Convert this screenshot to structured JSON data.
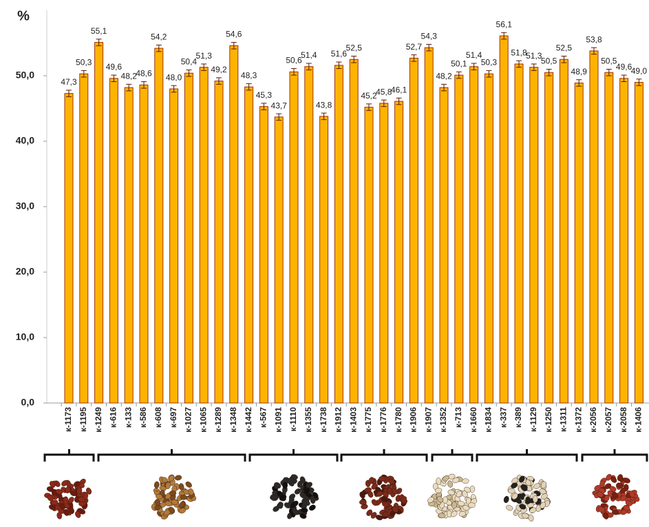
{
  "chart_data": {
    "type": "bar",
    "y_label": "%",
    "categories": [
      "к-1173",
      "к-1195",
      "к-1249",
      "к-616",
      "к-133",
      "к-586",
      "к-608",
      "к-697",
      "к-1027",
      "к-1065",
      "к-1289",
      "к-1348",
      "к-1442",
      "к-567",
      "к-1091",
      "к-1110",
      "к-1355",
      "к-1738",
      "к-1912",
      "к-1403",
      "к-1775",
      "к-1776",
      "к-1780",
      "к-1906",
      "к-1907",
      "к-1352",
      "к-713",
      "к-1660",
      "к-1834",
      "к-337",
      "к-389",
      "к-1129",
      "к-1250",
      "к-1311",
      "к-1372",
      "к-2056",
      "к-2057",
      "к-2058",
      "к-1406"
    ],
    "values": [
      47.3,
      50.3,
      55.1,
      49.6,
      48.2,
      48.6,
      54.2,
      48.0,
      50.4,
      51.3,
      49.2,
      54.6,
      48.3,
      45.3,
      43.7,
      50.6,
      51.4,
      43.8,
      51.6,
      52.5,
      45.2,
      45.8,
      46.1,
      52.7,
      54.3,
      48.2,
      50.1,
      51.4,
      50.3,
      56.1,
      51.8,
      51.3,
      50.5,
      52.5,
      48.9,
      53.8,
      50.5,
      49.6,
      49.0
    ],
    "value_labels": [
      "47,3",
      "50,3",
      "55,1",
      "49,6",
      "48,2",
      "48,6",
      "54,2",
      "48,0",
      "50,4",
      "51,3",
      "49,2",
      "54,6",
      "48,3",
      "45,3",
      "43,7",
      "50,6",
      "51,4",
      "43,8",
      "51,6",
      "52,5",
      "45,2",
      "45,8",
      "46,1",
      "52,7",
      "54,3",
      "48,2",
      "50,1",
      "51,4",
      "50,3",
      "56,1",
      "51,8",
      "51,3",
      "50,5",
      "52,5",
      "48,9",
      "53,8",
      "50,5",
      "49,6",
      "49,0"
    ],
    "errors": [
      0.5,
      0.5,
      0.5,
      0.5,
      0.5,
      0.5,
      0.5,
      0.5,
      0.5,
      0.5,
      0.5,
      0.5,
      0.5,
      0.5,
      0.5,
      0.5,
      0.5,
      0.5,
      0.5,
      0.5,
      0.5,
      0.5,
      0.5,
      0.5,
      0.5,
      0.5,
      0.5,
      0.5,
      0.5,
      0.5,
      0.5,
      0.5,
      0.5,
      0.5,
      0.5,
      0.5,
      0.5,
      0.5,
      0.5
    ],
    "color": "#ffb300",
    "edge_color": "#a0300a",
    "ylim": [
      0,
      60
    ],
    "yticks": [
      {
        "value": 0,
        "label": "0,0"
      },
      {
        "value": 10,
        "label": "10,0"
      },
      {
        "value": 20,
        "label": "20,0"
      },
      {
        "value": 30,
        "label": "30,0"
      },
      {
        "value": 40,
        "label": "40,0"
      },
      {
        "value": 50,
        "label": "50,0"
      }
    ]
  }
}
